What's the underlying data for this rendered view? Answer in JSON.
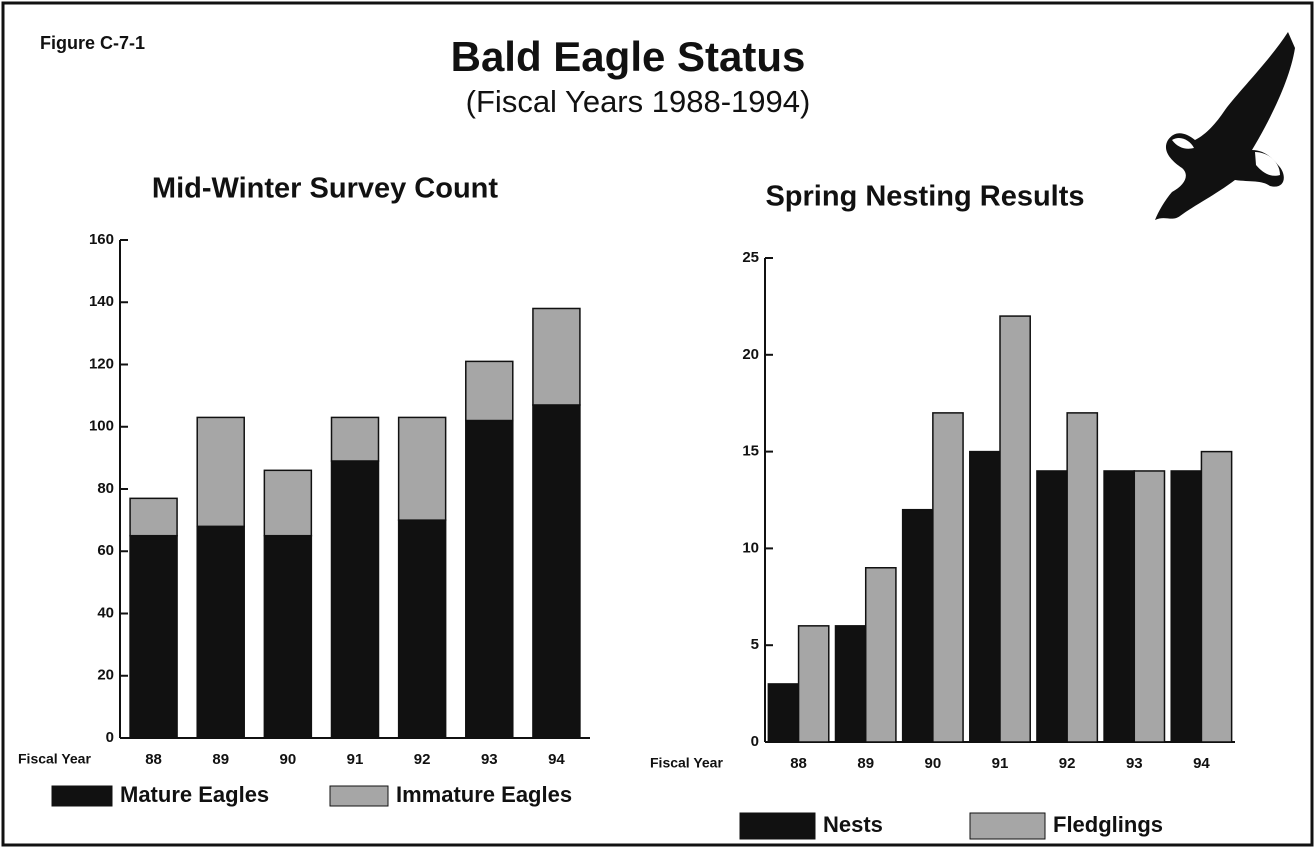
{
  "figure_label": "Figure C-7-1",
  "title": "Bald Eagle Status",
  "subtitle": "(Fiscal Years 1988-1994)",
  "chart_data": [
    {
      "type": "stacked_bar",
      "title": "Mid-Winter Survey Count",
      "xlabel": "Fiscal Year",
      "categories": [
        "88",
        "89",
        "90",
        "91",
        "92",
        "93",
        "94"
      ],
      "series": [
        {
          "name": "Mature Eagles",
          "color": "#111111",
          "values": [
            65,
            68,
            65,
            89,
            70,
            102,
            107
          ]
        },
        {
          "name": "Immature Eagles",
          "color": "#a6a6a6",
          "values": [
            12,
            35,
            21,
            14,
            33,
            19,
            31
          ]
        }
      ],
      "ylim": [
        0,
        160
      ],
      "yticks": [
        0,
        20,
        40,
        60,
        80,
        100,
        120,
        140,
        160
      ]
    },
    {
      "type": "bar",
      "title": "Spring Nesting Results",
      "xlabel": "Fiscal Year",
      "categories": [
        "88",
        "89",
        "90",
        "91",
        "92",
        "93",
        "94"
      ],
      "series": [
        {
          "name": "Nests",
          "color": "#111111",
          "values": [
            3,
            6,
            12,
            15,
            14,
            14,
            14
          ]
        },
        {
          "name": "Fledglings",
          "color": "#a6a6a6",
          "values": [
            6,
            9,
            17,
            22,
            17,
            14,
            15
          ]
        }
      ],
      "ylim": [
        0,
        25
      ],
      "yticks": [
        0,
        5,
        10,
        15,
        20,
        25
      ]
    }
  ]
}
